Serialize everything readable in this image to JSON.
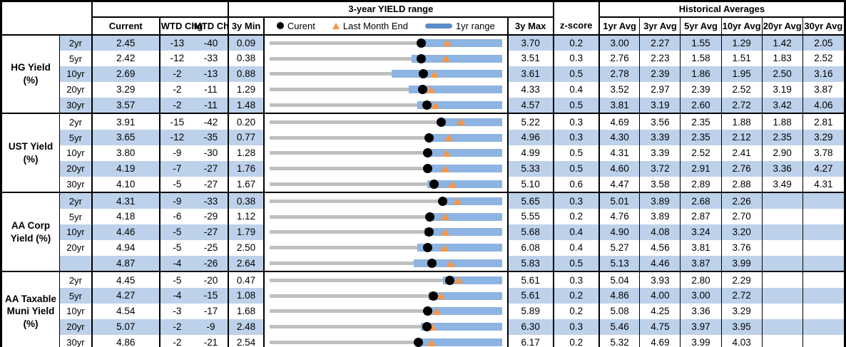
{
  "table": {
    "hist_title": "Historical Averages",
    "headers": {
      "current": "Current",
      "wtd": "WTD Chg",
      "mtd": "MTD Chg",
      "min": "3y Min",
      "max": "3y Max",
      "z": "z-score",
      "avgs": [
        "1yr Avg",
        "3yr Avg",
        "5yr Avg",
        "10yr Avg",
        "20yr Avg",
        "30yr Avg"
      ]
    },
    "legend": {
      "current_label": "Curent",
      "lme_label": "Last Month End",
      "range_label": "1yr range"
    },
    "colors": {
      "bar_blue": "#8DB4E2",
      "bar_gray": "#BFBFBF",
      "triangle_orange": "#F79646",
      "row_shade": "#BDD1EA",
      "legend_dash": "#5B8DC9",
      "dot_black": "#000000"
    }
  },
  "chart_data": {
    "type": "table",
    "title": "3-year YIELD range",
    "legend": [
      "Curent",
      "Last Month End",
      "1yr range"
    ],
    "description": "Bullet-range rows: gray bar spans 3y Min to 3y Max, blue bar is the 1yr range, black dot is Current, orange triangle is Last Month End (Current minus MTD change in bp).",
    "sections": [
      {
        "label": "HG Yield (%)",
        "rows": [
          {
            "tenor": "2yr",
            "current": "2.45",
            "wtd_chg": "-13",
            "mtd_chg": "-40",
            "min_3y": "0.09",
            "max_3y": "3.70",
            "z_score": "0.2",
            "last_month_end": 2.85,
            "range_1y_low": 2.4,
            "range_1y_high": 3.7,
            "avgs": [
              "3.00",
              "2.27",
              "1.55",
              "1.29",
              "1.42",
              "2.05"
            ],
            "shaded": true
          },
          {
            "tenor": "5yr",
            "current": "2.42",
            "wtd_chg": "-12",
            "mtd_chg": "-33",
            "min_3y": "0.38",
            "max_3y": "3.51",
            "z_score": "0.3",
            "last_month_end": 2.75,
            "range_1y_low": 2.29,
            "range_1y_high": 3.51,
            "avgs": [
              "2.76",
              "2.23",
              "1.58",
              "1.51",
              "1.83",
              "2.52"
            ],
            "shaded": false
          },
          {
            "tenor": "10yr",
            "current": "2.69",
            "wtd_chg": "-2",
            "mtd_chg": "-13",
            "min_3y": "0.88",
            "max_3y": "3.61",
            "z_score": "0.5",
            "last_month_end": 2.82,
            "range_1y_low": 2.31,
            "range_1y_high": 3.61,
            "avgs": [
              "2.78",
              "2.39",
              "1.86",
              "1.95",
              "2.50",
              "3.16"
            ],
            "shaded": true
          },
          {
            "tenor": "20yr",
            "current": "3.29",
            "wtd_chg": "-2",
            "mtd_chg": "-11",
            "min_3y": "1.29",
            "max_3y": "4.33",
            "z_score": "0.4",
            "last_month_end": 3.4,
            "range_1y_low": 3.11,
            "range_1y_high": 4.33,
            "avgs": [
              "3.52",
              "2.97",
              "2.39",
              "2.52",
              "3.19",
              "3.87"
            ],
            "shaded": false
          },
          {
            "tenor": "30yr",
            "current": "3.57",
            "wtd_chg": "-2",
            "mtd_chg": "-11",
            "min_3y": "1.48",
            "max_3y": "4.57",
            "z_score": "0.5",
            "last_month_end": 3.68,
            "range_1y_low": 3.44,
            "range_1y_high": 4.57,
            "avgs": [
              "3.81",
              "3.19",
              "2.60",
              "2.72",
              "3.42",
              "4.06"
            ],
            "shaded": true
          }
        ]
      },
      {
        "label": "UST Yield (%)",
        "rows": [
          {
            "tenor": "2yr",
            "current": "3.91",
            "wtd_chg": "-15",
            "mtd_chg": "-42",
            "min_3y": "0.20",
            "max_3y": "5.22",
            "z_score": "0.3",
            "last_month_end": 4.33,
            "range_1y_low": 3.85,
            "range_1y_high": 5.22,
            "avgs": [
              "4.69",
              "3.56",
              "2.35",
              "1.88",
              "1.88",
              "2.81"
            ],
            "shaded": false
          },
          {
            "tenor": "5yr",
            "current": "3.65",
            "wtd_chg": "-12",
            "mtd_chg": "-35",
            "min_3y": "0.77",
            "max_3y": "4.96",
            "z_score": "0.3",
            "last_month_end": 4.0,
            "range_1y_low": 3.6,
            "range_1y_high": 4.96,
            "avgs": [
              "4.30",
              "3.39",
              "2.35",
              "2.12",
              "2.35",
              "3.29"
            ],
            "shaded": true
          },
          {
            "tenor": "10yr",
            "current": "3.80",
            "wtd_chg": "-9",
            "mtd_chg": "-30",
            "min_3y": "1.28",
            "max_3y": "4.99",
            "z_score": "0.5",
            "last_month_end": 4.1,
            "range_1y_low": 3.78,
            "range_1y_high": 4.99,
            "avgs": [
              "4.31",
              "3.39",
              "2.52",
              "2.41",
              "2.90",
              "3.78"
            ],
            "shaded": false
          },
          {
            "tenor": "20yr",
            "current": "4.19",
            "wtd_chg": "-7",
            "mtd_chg": "-27",
            "min_3y": "1.76",
            "max_3y": "5.33",
            "z_score": "0.5",
            "last_month_end": 4.46,
            "range_1y_low": 4.15,
            "range_1y_high": 5.33,
            "avgs": [
              "4.60",
              "3.72",
              "2.91",
              "2.76",
              "3.36",
              "4.27"
            ],
            "shaded": true
          },
          {
            "tenor": "30yr",
            "current": "4.10",
            "wtd_chg": "-5",
            "mtd_chg": "-27",
            "min_3y": "1.67",
            "max_3y": "5.10",
            "z_score": "0.6",
            "last_month_end": 4.37,
            "range_1y_low": 4.0,
            "range_1y_high": 5.1,
            "avgs": [
              "4.47",
              "3.58",
              "2.89",
              "2.88",
              "3.49",
              "4.31"
            ],
            "shaded": false
          }
        ]
      },
      {
        "label": "AA Corp Yield (%)",
        "rows": [
          {
            "tenor": "2yr",
            "current": "4.31",
            "wtd_chg": "-9",
            "mtd_chg": "-33",
            "min_3y": "0.38",
            "max_3y": "5.65",
            "z_score": "0.3",
            "last_month_end": 4.64,
            "range_1y_low": 4.28,
            "range_1y_high": 5.65,
            "avgs": [
              "5.01",
              "3.89",
              "2.68",
              "2.26",
              "",
              ""
            ],
            "shaded": true
          },
          {
            "tenor": "5yr",
            "current": "4.18",
            "wtd_chg": "-6",
            "mtd_chg": "-29",
            "min_3y": "1.12",
            "max_3y": "5.55",
            "z_score": "0.2",
            "last_month_end": 4.47,
            "range_1y_low": 4.15,
            "range_1y_high": 5.55,
            "avgs": [
              "4.76",
              "3.89",
              "2.87",
              "2.70",
              "",
              ""
            ],
            "shaded": false
          },
          {
            "tenor": "10yr",
            "current": "4.46",
            "wtd_chg": "-5",
            "mtd_chg": "-27",
            "min_3y": "1.79",
            "max_3y": "5.68",
            "z_score": "0.4",
            "last_month_end": 4.73,
            "range_1y_low": 4.38,
            "range_1y_high": 5.68,
            "avgs": [
              "4.90",
              "4.08",
              "3.24",
              "3.20",
              "",
              ""
            ],
            "shaded": true
          },
          {
            "tenor": "20yr",
            "current": "4.94",
            "wtd_chg": "-5",
            "mtd_chg": "-25",
            "min_3y": "2.50",
            "max_3y": "6.08",
            "z_score": "0.4",
            "last_month_end": 5.19,
            "range_1y_low": 4.77,
            "range_1y_high": 6.08,
            "avgs": [
              "5.27",
              "4.56",
              "3.81",
              "3.76",
              "",
              ""
            ],
            "shaded": false
          },
          {
            "tenor": "",
            "current": "4.87",
            "wtd_chg": "-4",
            "mtd_chg": "-26",
            "min_3y": "2.64",
            "max_3y": "5.83",
            "z_score": "0.5",
            "last_month_end": 5.13,
            "range_1y_low": 4.62,
            "range_1y_high": 5.83,
            "avgs": [
              "5.13",
              "4.46",
              "3.87",
              "3.99",
              "",
              ""
            ],
            "shaded": true
          }
        ]
      },
      {
        "label": "AA Taxable Muni Yield (%)",
        "rows": [
          {
            "tenor": "2yr",
            "current": "4.45",
            "wtd_chg": "-5",
            "mtd_chg": "-20",
            "min_3y": "0.47",
            "max_3y": "5.61",
            "z_score": "0.3",
            "last_month_end": 4.65,
            "range_1y_low": 4.3,
            "range_1y_high": 5.61,
            "avgs": [
              "5.04",
              "3.93",
              "2.80",
              "2.29",
              "",
              ""
            ],
            "shaded": false
          },
          {
            "tenor": "5yr",
            "current": "4.27",
            "wtd_chg": "-4",
            "mtd_chg": "-15",
            "min_3y": "1.08",
            "max_3y": "5.61",
            "z_score": "0.2",
            "last_month_end": 4.42,
            "range_1y_low": 4.18,
            "range_1y_high": 5.61,
            "avgs": [
              "4.86",
              "4.00",
              "3.00",
              "2.72",
              "",
              ""
            ],
            "shaded": true
          },
          {
            "tenor": "10yr",
            "current": "4.54",
            "wtd_chg": "-3",
            "mtd_chg": "-17",
            "min_3y": "1.68",
            "max_3y": "5.89",
            "z_score": "0.2",
            "last_month_end": 4.71,
            "range_1y_low": 4.48,
            "range_1y_high": 5.89,
            "avgs": [
              "5.08",
              "4.25",
              "3.36",
              "3.29",
              "",
              ""
            ],
            "shaded": false
          },
          {
            "tenor": "20yr",
            "current": "5.07",
            "wtd_chg": "-2",
            "mtd_chg": "-9",
            "min_3y": "2.48",
            "max_3y": "6.30",
            "z_score": "0.3",
            "last_month_end": 5.16,
            "range_1y_low": 4.97,
            "range_1y_high": 6.3,
            "avgs": [
              "5.46",
              "4.75",
              "3.97",
              "3.95",
              "",
              ""
            ],
            "shaded": true
          },
          {
            "tenor": "30yr",
            "current": "4.86",
            "wtd_chg": "-2",
            "mtd_chg": "-21",
            "min_3y": "2.54",
            "max_3y": "6.17",
            "z_score": "0.2",
            "last_month_end": 5.07,
            "range_1y_low": 4.85,
            "range_1y_high": 6.17,
            "avgs": [
              "5.32",
              "4.69",
              "3.99",
              "4.03",
              "",
              ""
            ],
            "shaded": false
          }
        ]
      }
    ]
  }
}
